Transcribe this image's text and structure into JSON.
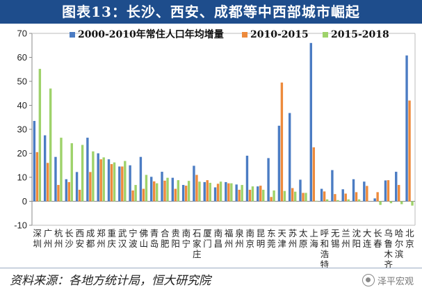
{
  "header": {
    "title": "图表13：长沙、西安、成都等中西部城市崛起"
  },
  "footer": {
    "source": "资料来源：各地方统计局，恒大研究院",
    "watermark": "泽平宏观"
  },
  "colors": {
    "title_bg": "#1e4d8c",
    "series_1": "#4b7cc3",
    "series_2": "#ed8a3c",
    "series_3": "#9ed26a"
  },
  "chart_data": {
    "type": "bar",
    "title": "",
    "xlabel": "",
    "ylabel": "",
    "ylim": [
      -10,
      70
    ],
    "yticks": [
      -10,
      0,
      10,
      20,
      30,
      40,
      50,
      60,
      70
    ],
    "grid": false,
    "legend_position": "top-right",
    "categories": [
      "深圳",
      "广州",
      "杭州",
      "长沙",
      "西安",
      "成都",
      "郑州",
      "重庆",
      "武汉",
      "宁波",
      "佛山",
      "青岛",
      "合肥",
      "贵阳",
      "南宁",
      "石家庄",
      "厦门",
      "南昌",
      "福州",
      "泉州",
      "南京",
      "昆明",
      "东莞",
      "天津",
      "苏州",
      "太原",
      "上海",
      "呼和浩特",
      "无锡",
      "兰州",
      "沈阳",
      "大连",
      "长春",
      "乌鲁木齐",
      "哈尔滨",
      "北京"
    ],
    "category_labels": [
      "深\n圳",
      "广\n州",
      "杭\n州",
      "长\n沙",
      "西\n安",
      "成\n都",
      "郑\n州",
      "重\n庆",
      "武\n汉",
      "宁\n波",
      "佛\n山",
      "青\n岛",
      "合\n肥",
      "贵\n阳",
      "南\n宁",
      "石\n家\n庄",
      "厦\n门",
      "南\n昌",
      "福\n州",
      "泉\n州",
      "南\n京",
      "昆\n明",
      "东\n莞",
      "天\n津",
      "苏\n州",
      "太\n原",
      "上\n海",
      "呼\n和\n浩\n特",
      "无\n锡",
      "兰\n州",
      "沈\n阳",
      "大\n连",
      "长\n春",
      "乌\n鲁\n木\n齐",
      "哈\n尔\n滨",
      "北\n京"
    ],
    "series": [
      {
        "name": "2000-2010年常住人口年均增量",
        "color": "#4b7cc3",
        "values": [
          33.5,
          27.5,
          18.5,
          9.2,
          12.2,
          26.5,
          20.0,
          17.5,
          14.5,
          15.0,
          18.5,
          10.2,
          12.3,
          9.8,
          6.8,
          14.8,
          8.0,
          5.8,
          8.0,
          7.0,
          19.0,
          6.2,
          18.0,
          31.5,
          36.8,
          9.0,
          66.0,
          5.2,
          13.0,
          5.0,
          9.2,
          8.2,
          1.2,
          8.7,
          12.3,
          60.8
        ]
      },
      {
        "name": "2010-2015",
        "color": "#ed8a3c",
        "values": [
          20.5,
          16.0,
          6.8,
          8.0,
          4.8,
          12.2,
          17.5,
          15.5,
          14.5,
          4.5,
          5.2,
          8.3,
          8.6,
          5.2,
          6.5,
          11.0,
          8.8,
          7.3,
          7.5,
          4.8,
          4.8,
          6.5,
          1.8,
          49.5,
          5.5,
          3.5,
          22.5,
          4.1,
          3.0,
          3.2,
          3.8,
          6.4,
          3.8,
          8.8,
          6.8,
          42.0
        ]
      },
      {
        "name": "2015-2018",
        "color": "#9ed26a",
        "values": [
          55.2,
          47.0,
          26.5,
          24.2,
          23.5,
          20.8,
          18.3,
          16.2,
          16.8,
          6.8,
          11.0,
          7.5,
          9.8,
          8.8,
          8.5,
          8.2,
          7.7,
          8.2,
          7.5,
          6.8,
          6.2,
          4.8,
          4.5,
          4.3,
          4.0,
          3.5,
          0.2,
          0.8,
          0.5,
          0.8,
          0.8,
          0.0,
          -1.5,
          -0.8,
          -1.2,
          -1.8
        ]
      }
    ]
  }
}
